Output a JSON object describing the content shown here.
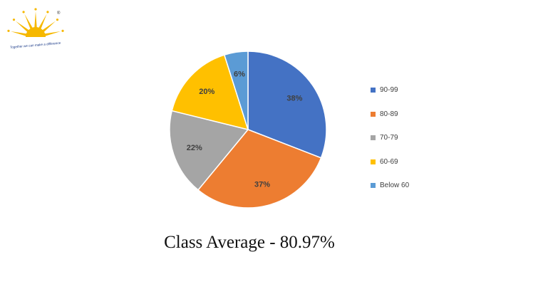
{
  "logo": {
    "tagline": "Together we can make a difference",
    "mark": "®"
  },
  "caption": "Class Average - 80.97%",
  "colors": {
    "logo_sun": "#F6B800",
    "logo_text": "#1F3E8A"
  },
  "chart_data": {
    "type": "pie",
    "title": "",
    "legend_position": "right",
    "slices": [
      {
        "label": "90-99",
        "value": 38,
        "display": "38%",
        "color": "#4472C4"
      },
      {
        "label": "80-89",
        "value": 37,
        "display": "37%",
        "color": "#ED7D31"
      },
      {
        "label": "70-79",
        "value": 22,
        "display": "22%",
        "color": "#A5A5A5"
      },
      {
        "label": "60-69",
        "value": 20,
        "display": "20%",
        "color": "#FFC000"
      },
      {
        "label": "Below 60",
        "value": 6,
        "display": "6%",
        "color": "#5B9BD5"
      }
    ]
  }
}
